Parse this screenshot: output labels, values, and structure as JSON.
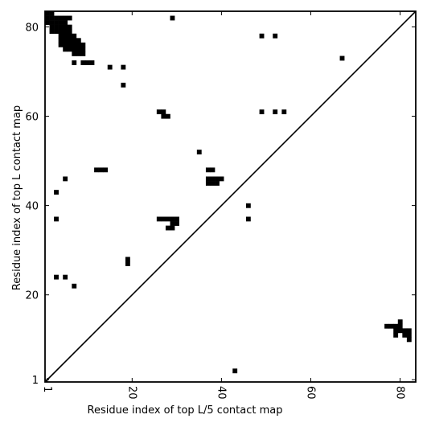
{
  "chart_data": {
    "type": "heatmap",
    "title": "",
    "xlabel": "Residue index of top L/5 contact map",
    "ylabel": "Residue index of top L contact map",
    "xlim": [
      0.5,
      83.5
    ],
    "ylim": [
      0.5,
      83.5
    ],
    "x_ticks": [
      {
        "value": 1,
        "label": "1"
      },
      {
        "value": 20,
        "label": "20"
      },
      {
        "value": 40,
        "label": "40"
      },
      {
        "value": 60,
        "label": "60"
      },
      {
        "value": 80,
        "label": "80"
      }
    ],
    "y_ticks": [
      {
        "value": 1,
        "label": "1"
      },
      {
        "value": 20,
        "label": "20"
      },
      {
        "value": 40,
        "label": "40"
      },
      {
        "value": 60,
        "label": "60"
      },
      {
        "value": 80,
        "label": "80"
      }
    ],
    "diagonal": true,
    "colors": {
      "cell": "#000000",
      "background": "#ffffff",
      "axis": "#000000"
    },
    "upper_contacts": [
      [
        1,
        83
      ],
      [
        2,
        83
      ],
      [
        1,
        82
      ],
      [
        2,
        82
      ],
      [
        3,
        82
      ],
      [
        4,
        82
      ],
      [
        5,
        82
      ],
      [
        1,
        81
      ],
      [
        2,
        81
      ],
      [
        3,
        81
      ],
      [
        4,
        81
      ],
      [
        5,
        81
      ],
      [
        2,
        80
      ],
      [
        3,
        80
      ],
      [
        4,
        80
      ],
      [
        5,
        80
      ],
      [
        6,
        80
      ],
      [
        2,
        79
      ],
      [
        3,
        79
      ],
      [
        4,
        79
      ],
      [
        5,
        79
      ],
      [
        6,
        79
      ],
      [
        4,
        78
      ],
      [
        5,
        78
      ],
      [
        6,
        78
      ],
      [
        7,
        78
      ],
      [
        4,
        77
      ],
      [
        5,
        77
      ],
      [
        6,
        77
      ],
      [
        7,
        77
      ],
      [
        8,
        77
      ],
      [
        4,
        76
      ],
      [
        5,
        76
      ],
      [
        6,
        76
      ],
      [
        7,
        76
      ],
      [
        8,
        76
      ],
      [
        9,
        76
      ],
      [
        5,
        75
      ],
      [
        6,
        75
      ],
      [
        7,
        75
      ],
      [
        8,
        75
      ],
      [
        9,
        75
      ],
      [
        7,
        74
      ],
      [
        8,
        74
      ],
      [
        9,
        74
      ],
      [
        7,
        72
      ],
      [
        9,
        72
      ],
      [
        10,
        72
      ],
      [
        11,
        72
      ],
      [
        15,
        71
      ],
      [
        18,
        71
      ],
      [
        18,
        67
      ],
      [
        6,
        82
      ],
      [
        29,
        82
      ],
      [
        26,
        61
      ],
      [
        27,
        61
      ],
      [
        27,
        60
      ],
      [
        28,
        60
      ],
      [
        49,
        61
      ],
      [
        52,
        61
      ],
      [
        54,
        61
      ],
      [
        49,
        78
      ],
      [
        52,
        78
      ],
      [
        67,
        73
      ],
      [
        35,
        52
      ],
      [
        12,
        48
      ],
      [
        13,
        48
      ],
      [
        14,
        48
      ],
      [
        37,
        48
      ],
      [
        38,
        48
      ],
      [
        5,
        46
      ],
      [
        37,
        46
      ],
      [
        38,
        46
      ],
      [
        39,
        46
      ],
      [
        40,
        46
      ],
      [
        37,
        45
      ],
      [
        38,
        45
      ],
      [
        39,
        45
      ],
      [
        3,
        43
      ],
      [
        46,
        40
      ],
      [
        46,
        37
      ],
      [
        3,
        37
      ],
      [
        26,
        37
      ],
      [
        27,
        37
      ],
      [
        28,
        37
      ],
      [
        29,
        37
      ],
      [
        30,
        37
      ],
      [
        29,
        36
      ],
      [
        30,
        36
      ],
      [
        28,
        35
      ],
      [
        29,
        35
      ],
      [
        19,
        28
      ],
      [
        19,
        27
      ],
      [
        3,
        24
      ],
      [
        5,
        24
      ],
      [
        7,
        22
      ]
    ],
    "lower_contacts": [
      [
        80,
        14
      ],
      [
        79,
        13
      ],
      [
        80,
        13
      ],
      [
        77,
        13
      ],
      [
        78,
        13
      ],
      [
        79,
        12
      ],
      [
        80,
        12
      ],
      [
        81,
        12
      ],
      [
        82,
        12
      ],
      [
        79,
        11
      ],
      [
        81,
        11
      ],
      [
        82,
        11
      ],
      [
        82,
        10
      ],
      [
        43,
        3
      ]
    ]
  }
}
